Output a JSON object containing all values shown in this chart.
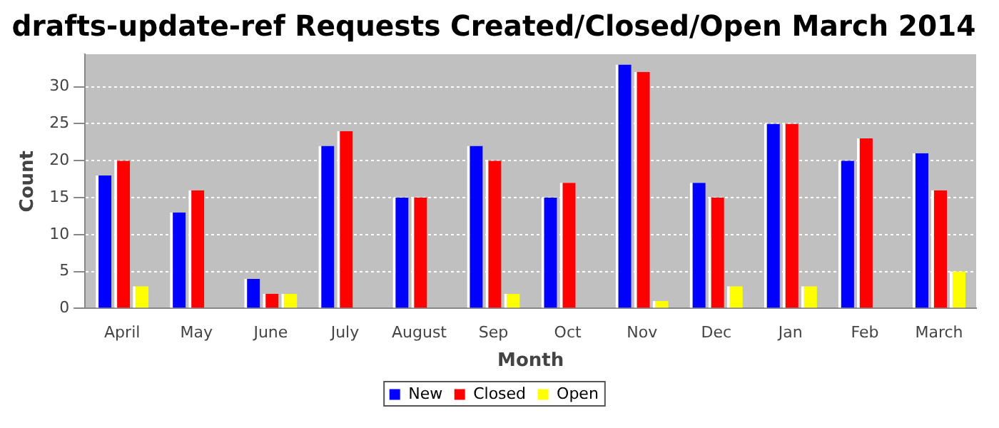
{
  "chart_data": {
    "type": "bar",
    "title": "drafts-update-ref Requests Created/Closed/Open March 2014",
    "xlabel": "Month",
    "ylabel": "Count",
    "categories": [
      "April",
      "May",
      "June",
      "July",
      "August",
      "Sep",
      "Oct",
      "Nov",
      "Dec",
      "Jan",
      "Feb",
      "March"
    ],
    "series": [
      {
        "name": "New",
        "color": "#0000ff",
        "values": [
          18,
          13,
          4,
          22,
          15,
          22,
          15,
          33,
          17,
          25,
          20,
          21
        ]
      },
      {
        "name": "Closed",
        "color": "#ff0000",
        "values": [
          20,
          16,
          2,
          24,
          15,
          20,
          17,
          32,
          15,
          25,
          23,
          16
        ]
      },
      {
        "name": "Open",
        "color": "#ffff00",
        "values": [
          3,
          0,
          2,
          0,
          0,
          2,
          0,
          1,
          3,
          3,
          0,
          5
        ]
      }
    ],
    "ylim": [
      0,
      34.4
    ],
    "yticks": [
      0,
      5,
      10,
      15,
      20,
      25,
      30
    ],
    "grid": "y",
    "legend": "bottom"
  }
}
